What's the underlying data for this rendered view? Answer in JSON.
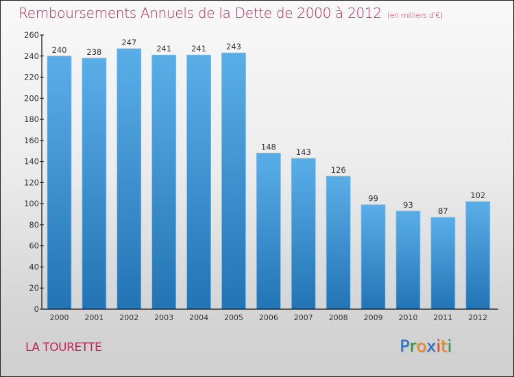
{
  "header": {
    "title": "Remboursements Annuels de la Dette de 2000 à 2012",
    "unit": "(en milliers d'€)"
  },
  "footer": {
    "town": "LA TOURETTE",
    "logo_letters": [
      {
        "ch": "P",
        "color": "#2277cc"
      },
      {
        "ch": "r",
        "color": "#2a9a3a"
      },
      {
        "ch": "o",
        "color": "#f08a1c"
      },
      {
        "ch": "x",
        "color": "#1e6fc4"
      },
      {
        "ch": "i",
        "color": "#e8462a"
      },
      {
        "ch": "t",
        "color": "#f08a1c"
      },
      {
        "ch": "i",
        "color": "#2a9a3a"
      }
    ]
  },
  "colors": {
    "title": "#c0255a",
    "bar_top": "#5aaee8",
    "bar_bottom": "#2274b4",
    "axis": "#111111",
    "label": "#333333"
  },
  "chart_data": {
    "type": "bar",
    "title": "Remboursements Annuels de la Dette de 2000 à 2012",
    "subtitle": "(en milliers d'€)",
    "xlabel": "",
    "ylabel": "",
    "categories": [
      "2000",
      "2001",
      "2002",
      "2003",
      "2004",
      "2005",
      "2006",
      "2007",
      "2008",
      "2009",
      "2010",
      "2011",
      "2012"
    ],
    "values": [
      240,
      238,
      247,
      241,
      241,
      243,
      148,
      143,
      126,
      99,
      93,
      87,
      102
    ],
    "ylim": [
      0,
      260
    ],
    "yticks": [
      0,
      20,
      40,
      60,
      80,
      100,
      120,
      140,
      160,
      180,
      200,
      220,
      240,
      260
    ],
    "grid": false,
    "legend": "none",
    "data_labels": true
  }
}
